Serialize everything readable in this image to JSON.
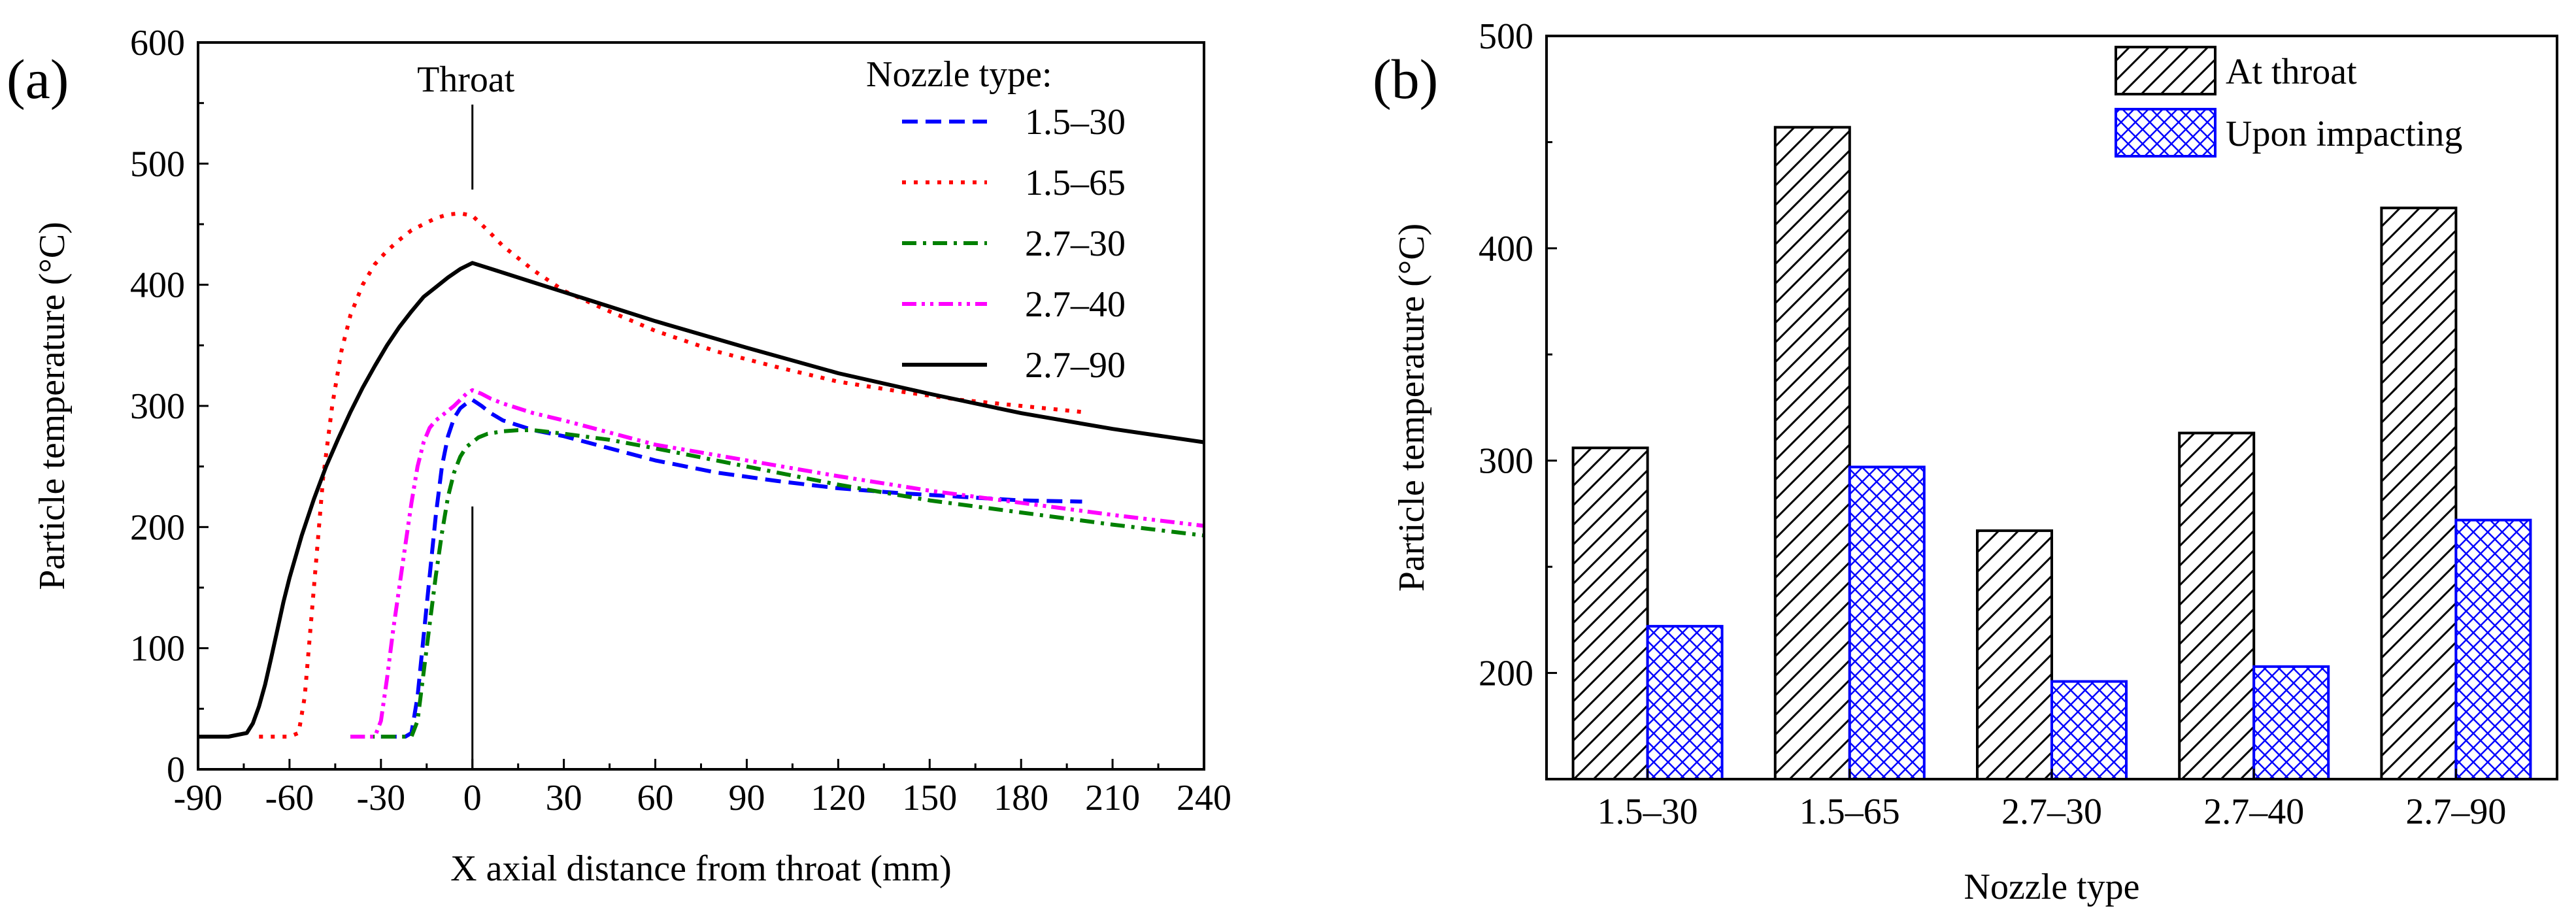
{
  "chart_data": [
    {
      "type": "line",
      "panel_label": "(a)",
      "xlabel": "X axial distance from throat (mm)",
      "ylabel": "Particle temperature (°C)",
      "xlim": [
        -90,
        240
      ],
      "ylim": [
        0,
        600
      ],
      "xticks": [
        "-90",
        "-60",
        "-30",
        "0",
        "30",
        "60",
        "90",
        "120",
        "150",
        "180",
        "210",
        "240"
      ],
      "yticks": [
        "0",
        "100",
        "200",
        "300",
        "400",
        "500",
        "600"
      ],
      "annotation": "Throat",
      "legend_title": "Nozzle type:",
      "legend_position": "top-right",
      "series": [
        {
          "name": "1.5–30",
          "color": "#0000ff",
          "dash": "dashed",
          "x": [
            -30,
            -26,
            -24,
            -22,
            -20,
            -18,
            -16,
            -14,
            -12,
            -10,
            -8,
            -6,
            -4,
            -2,
            0,
            3,
            6,
            10,
            20,
            30,
            45,
            60,
            80,
            100,
            120,
            140,
            160,
            180,
            200
          ],
          "y": [
            27,
            27,
            27,
            27,
            30,
            60,
            110,
            160,
            210,
            250,
            275,
            290,
            298,
            302,
            305,
            300,
            294,
            288,
            280,
            275,
            265,
            255,
            245,
            238,
            232,
            228,
            225,
            222,
            221
          ]
        },
        {
          "name": "1.5–65",
          "color": "#ff0000",
          "dash": "dotted",
          "x": [
            -70,
            -60,
            -57,
            -55,
            -53,
            -51,
            -49,
            -46,
            -43,
            -40,
            -36,
            -32,
            -28,
            -24,
            -20,
            -16,
            -12,
            -8,
            -4,
            0,
            5,
            10,
            20,
            30,
            45,
            60,
            80,
            100,
            120,
            140,
            160,
            180,
            200
          ],
          "y": [
            27,
            27,
            30,
            60,
            120,
            180,
            240,
            300,
            345,
            375,
            400,
            417,
            428,
            437,
            445,
            450,
            455,
            458,
            459,
            457,
            445,
            432,
            412,
            395,
            378,
            362,
            345,
            332,
            320,
            312,
            305,
            300,
            295
          ]
        },
        {
          "name": "2.7–30",
          "color": "#008000",
          "dash": "dashdot",
          "x": [
            -40,
            -25,
            -20,
            -18,
            -16,
            -14,
            -12,
            -10,
            -8,
            -6,
            -4,
            -2,
            0,
            2,
            5,
            10,
            15,
            20,
            30,
            45,
            60,
            90,
            120,
            150,
            180,
            210,
            240
          ],
          "y": [
            27,
            27,
            27,
            40,
            80,
            120,
            160,
            195,
            225,
            245,
            258,
            266,
            270,
            274,
            277,
            279,
            280,
            280,
            277,
            272,
            265,
            250,
            235,
            222,
            212,
            202,
            193
          ]
        },
        {
          "name": "2.7–40",
          "color": "#ff00ff",
          "dash": "dashdotdot",
          "x": [
            -40,
            -32,
            -30,
            -28,
            -26,
            -24,
            -22,
            -20,
            -18,
            -16,
            -14,
            -12,
            -10,
            -8,
            -6,
            -4,
            -2,
            0,
            3,
            6,
            10,
            20,
            30,
            45,
            60,
            90,
            120,
            150,
            180,
            210,
            240
          ],
          "y": [
            27,
            27,
            40,
            75,
            115,
            150,
            185,
            220,
            250,
            270,
            282,
            288,
            292,
            296,
            300,
            305,
            310,
            313,
            310,
            306,
            302,
            294,
            288,
            278,
            268,
            255,
            242,
            230,
            220,
            210,
            201
          ]
        },
        {
          "name": "2.7–90",
          "color": "#000000",
          "dash": "solid",
          "x": [
            -90,
            -80,
            -74,
            -72,
            -70,
            -68,
            -66,
            -64,
            -62,
            -60,
            -56,
            -52,
            -48,
            -44,
            -40,
            -36,
            -32,
            -28,
            -24,
            -20,
            -16,
            -12,
            -8,
            -4,
            0,
            10,
            20,
            30,
            45,
            60,
            90,
            120,
            150,
            180,
            210,
            240
          ],
          "y": [
            27,
            27,
            30,
            38,
            52,
            70,
            92,
            115,
            138,
            158,
            193,
            223,
            250,
            273,
            295,
            315,
            333,
            350,
            365,
            378,
            390,
            398,
            406,
            413,
            418,
            410,
            402,
            394,
            382,
            370,
            348,
            327,
            310,
            294,
            281,
            270
          ]
        }
      ]
    },
    {
      "type": "bar",
      "panel_label": "(b)",
      "xlabel": "Nozzle type",
      "ylabel": "Particle temperature (°C)",
      "categories": [
        "1.5–30",
        "1.5–65",
        "2.7–30",
        "2.7–40",
        "2.7–90"
      ],
      "ylim": [
        150,
        500
      ],
      "yticks": [
        "200",
        "300",
        "400",
        "500"
      ],
      "legend_position": "top-right",
      "series": [
        {
          "name": "At throat",
          "color": "#000000",
          "pattern": "diagonal-hatch",
          "values": [
            306,
            457,
            267,
            313,
            419
          ]
        },
        {
          "name": "Upon impacting",
          "color": "#0000ff",
          "pattern": "cross-hatch",
          "values": [
            222,
            297,
            196,
            203,
            272
          ]
        }
      ]
    }
  ]
}
